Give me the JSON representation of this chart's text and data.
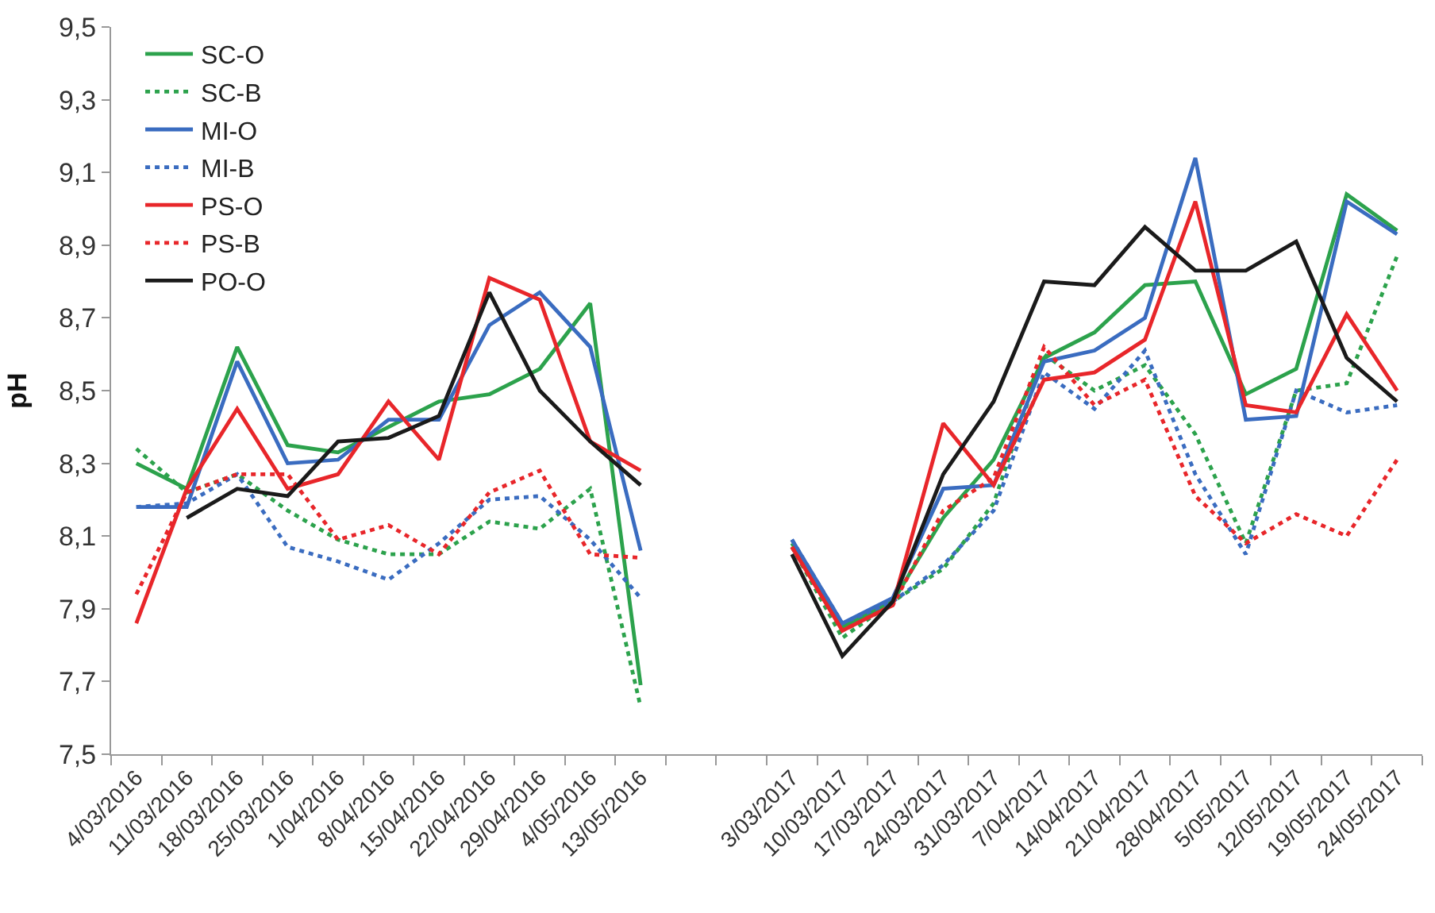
{
  "chart_data": {
    "type": "line",
    "ylabel": "pH",
    "ylim": [
      7.5,
      9.5
    ],
    "yticks": [
      {
        "value": 7.5,
        "label": "7,5"
      },
      {
        "value": 7.7,
        "label": "7,7"
      },
      {
        "value": 7.9,
        "label": "7,9"
      },
      {
        "value": 8.1,
        "label": "8,1"
      },
      {
        "value": 8.3,
        "label": "8,3"
      },
      {
        "value": 8.5,
        "label": "8,5"
      },
      {
        "value": 8.7,
        "label": "8,7"
      },
      {
        "value": 8.9,
        "label": "8,9"
      },
      {
        "value": 9.1,
        "label": "9,1"
      },
      {
        "value": 9.3,
        "label": "9,3"
      },
      {
        "value": 9.5,
        "label": "9,5"
      }
    ],
    "categories": [
      "4/03/2016",
      "11/03/2016",
      "18/03/2016",
      "25/03/2016",
      "1/04/2016",
      "8/04/2016",
      "15/04/2016",
      "22/04/2016",
      "29/04/2016",
      "4/05/2016",
      "13/05/2016",
      null,
      null,
      "3/03/2017",
      "10/03/2017",
      "17/03/2017",
      "24/03/2017",
      "31/03/2017",
      "7/04/2017",
      "14/04/2017",
      "21/04/2017",
      "28/04/2017",
      "5/05/2017",
      "12/05/2017",
      "19/05/2017",
      "24/05/2017"
    ],
    "legend": "top left",
    "marker": "none",
    "series": [
      {
        "name": "SC-O",
        "color": "#2ca24c",
        "line_style": "solid",
        "values": [
          8.3,
          8.23,
          8.62,
          8.35,
          8.33,
          8.4,
          8.47,
          8.49,
          8.56,
          8.74,
          7.69,
          null,
          null,
          8.08,
          7.85,
          7.92,
          8.15,
          8.31,
          8.59,
          8.66,
          8.79,
          8.8,
          8.49,
          8.56,
          9.04,
          8.94
        ]
      },
      {
        "name": "SC-B",
        "color": "#2ca24c",
        "line_style": "dotted",
        "values": [
          8.34,
          8.22,
          8.27,
          8.17,
          8.09,
          8.05,
          8.05,
          8.14,
          8.12,
          8.23,
          7.63,
          null,
          null,
          8.07,
          7.82,
          7.92,
          8.01,
          8.19,
          8.6,
          8.5,
          8.57,
          8.38,
          8.08,
          8.5,
          8.52,
          8.87
        ]
      },
      {
        "name": "MI-O",
        "color": "#3a6cc0",
        "line_style": "solid",
        "values": [
          8.18,
          8.18,
          8.58,
          8.3,
          8.31,
          8.42,
          8.42,
          8.68,
          8.77,
          8.62,
          8.06,
          null,
          null,
          8.09,
          7.86,
          7.93,
          8.23,
          8.24,
          8.58,
          8.61,
          8.7,
          9.14,
          8.42,
          8.43,
          9.02,
          8.93
        ]
      },
      {
        "name": "MI-B",
        "color": "#3a6cc0",
        "line_style": "dotted",
        "values": [
          8.18,
          8.19,
          8.27,
          8.07,
          8.03,
          7.98,
          8.08,
          8.2,
          8.21,
          8.09,
          7.93,
          null,
          null,
          8.09,
          7.86,
          7.92,
          8.02,
          8.17,
          8.55,
          8.45,
          8.61,
          8.27,
          8.05,
          8.5,
          8.44,
          8.46
        ]
      },
      {
        "name": "PS-O",
        "color": "#e8262a",
        "line_style": "solid",
        "values": [
          7.86,
          8.23,
          8.45,
          8.23,
          8.27,
          8.47,
          8.31,
          8.81,
          8.75,
          8.36,
          8.28,
          null,
          null,
          8.07,
          7.84,
          7.91,
          8.41,
          8.24,
          8.53,
          8.55,
          8.64,
          9.02,
          8.46,
          8.44,
          8.71,
          8.5
        ]
      },
      {
        "name": "PS-B",
        "color": "#e8262a",
        "line_style": "dotted",
        "values": [
          7.94,
          8.22,
          8.27,
          8.27,
          8.09,
          8.13,
          8.05,
          8.22,
          8.28,
          8.05,
          8.04,
          null,
          null,
          8.07,
          7.84,
          7.91,
          8.17,
          8.26,
          8.62,
          8.46,
          8.53,
          8.21,
          8.08,
          8.16,
          8.1,
          8.31
        ]
      },
      {
        "name": "PO-O",
        "color": "#1a1a1a",
        "line_style": "solid",
        "values": [
          null,
          8.15,
          8.23,
          8.21,
          8.36,
          8.37,
          8.43,
          8.77,
          8.5,
          8.36,
          8.24,
          null,
          null,
          8.05,
          7.77,
          7.92,
          8.27,
          8.47,
          8.8,
          8.79,
          8.95,
          8.83,
          8.83,
          8.91,
          8.59,
          8.47
        ]
      }
    ]
  }
}
